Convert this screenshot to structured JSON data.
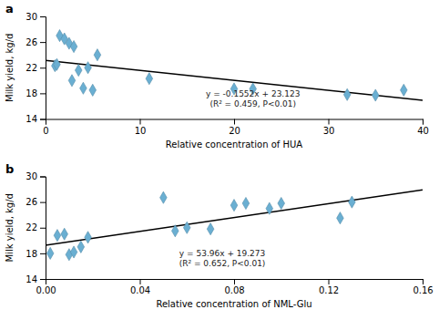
{
  "chart_data": [
    {
      "type": "scatter",
      "title": "a",
      "xlabel": "Relative concentration of HUA",
      "ylabel": "Milk yield, kg/d",
      "xlim": [
        0,
        40
      ],
      "ylim": [
        14,
        30
      ],
      "xticks": [
        0,
        10,
        20,
        30,
        40
      ],
      "yticks": [
        14,
        18,
        22,
        26,
        30
      ],
      "grid": false,
      "series": [
        {
          "type": "scatter",
          "color": "#6aafd2",
          "marker": "diamond",
          "x": [
            1.0,
            1.5,
            2.0,
            2.5,
            3.0,
            3.5,
            4.0,
            5.0,
            5.5,
            11.0,
            20.0,
            22.0,
            32.0,
            35.0,
            38.0,
            1.2,
            2.8,
            4.5
          ],
          "values": [
            22.3,
            27.0,
            26.5,
            25.8,
            25.3,
            21.6,
            18.8,
            18.5,
            24.0,
            20.3,
            18.7,
            18.7,
            17.8,
            17.7,
            18.5,
            22.5,
            20.0,
            22.0
          ]
        },
        {
          "type": "line",
          "color": "black",
          "line_style": "solid",
          "x": [
            0,
            40
          ],
          "values": [
            23.123,
            16.915
          ]
        }
      ],
      "annotations": [
        {
          "text": [
            "y = -0.1552x + 23.123",
            "(R² = 0.459, P<0.01)"
          ],
          "x": 22,
          "y": 15.5
        }
      ]
    },
    {
      "type": "scatter",
      "title": "b",
      "xlabel": "Relative concentration of NML-Glu",
      "ylabel": "Milk yield, kg/d",
      "xlim": [
        0,
        0.16
      ],
      "ylim": [
        14,
        30
      ],
      "xticks": [
        {
          "value": 0,
          "label": "0.00"
        },
        {
          "value": 0.04,
          "label": "0.04"
        },
        {
          "value": 0.08,
          "label": "0.08"
        },
        {
          "value": 0.12,
          "label": "0.12"
        },
        {
          "value": 0.16,
          "label": "0.16"
        }
      ],
      "yticks": [
        14,
        18,
        22,
        26,
        30
      ],
      "grid": false,
      "series": [
        {
          "type": "scatter",
          "color": "#6aafd2",
          "marker": "diamond",
          "x": [
            0.002,
            0.005,
            0.008,
            0.01,
            0.012,
            0.015,
            0.018,
            0.05,
            0.055,
            0.06,
            0.07,
            0.08,
            0.085,
            0.095,
            0.1,
            0.125,
            0.13
          ],
          "values": [
            18.0,
            20.8,
            21.0,
            17.8,
            18.2,
            19.0,
            20.5,
            26.7,
            21.5,
            22.0,
            21.8,
            25.5,
            25.8,
            25.0,
            25.8,
            23.5,
            26.0
          ]
        },
        {
          "type": "line",
          "color": "black",
          "line_style": "solid",
          "x": [
            0,
            0.16
          ],
          "values": [
            19.273,
            27.9066
          ]
        }
      ],
      "annotations": [
        {
          "text": [
            "y = 53.96x + 19.273",
            "(R² = 0.652, P<0.01)"
          ],
          "x": 0.075,
          "y": 15.5
        }
      ]
    }
  ]
}
